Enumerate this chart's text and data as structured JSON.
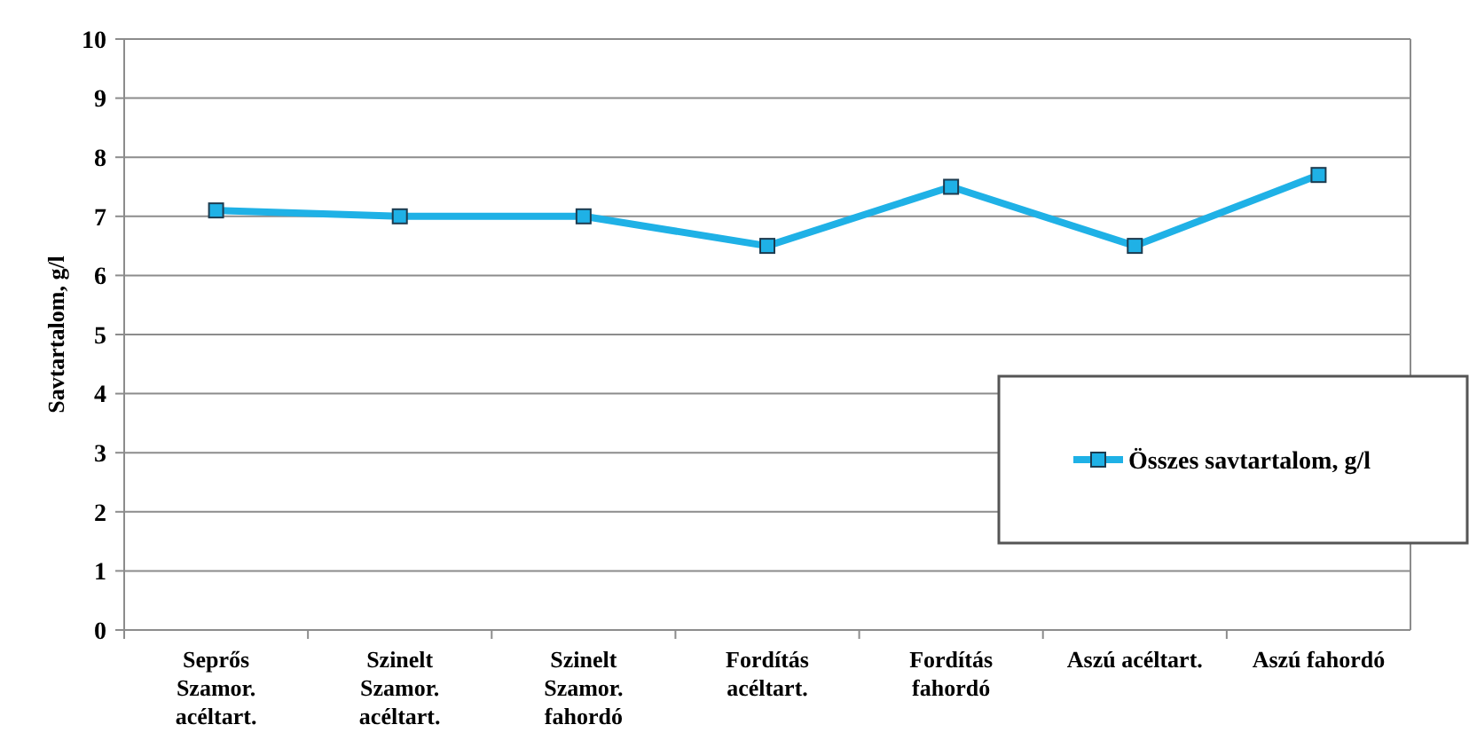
{
  "chart_data": {
    "type": "line",
    "ylabel": "Savtartalom, g/l",
    "categories": [
      "Seprős\nSzamor.\nacéltart.",
      "Szinelt\nSzamor.\nacéltart.",
      "Szinelt\nSzamor.\nfahordó",
      "Fordítás\nacéltart.",
      "Fordítás\nfahordó",
      "Aszú acéltart.",
      "Aszú fahordó"
    ],
    "series": [
      {
        "name": "Összes savtartalom, g/l",
        "color": "#1fb1e6",
        "values": [
          7.1,
          7.0,
          7.0,
          6.5,
          7.5,
          6.5,
          7.7
        ]
      }
    ],
    "ylim": [
      0,
      10
    ],
    "yticks": [
      0,
      1,
      2,
      3,
      4,
      5,
      6,
      7,
      8,
      9,
      10
    ],
    "grid": "y",
    "legend": "right",
    "marker": "square",
    "line_style": "solid"
  }
}
